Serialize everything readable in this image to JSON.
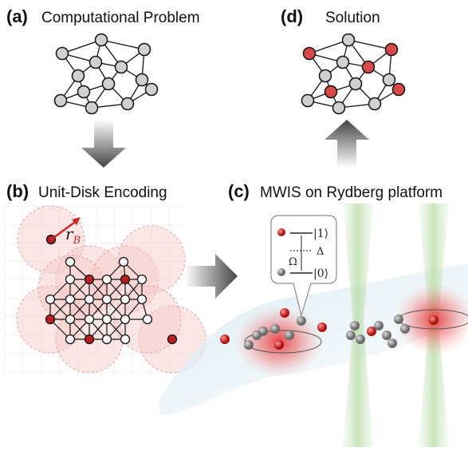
{
  "panels": [
    {
      "label": "(a)",
      "title": "Computational Problem"
    },
    {
      "label": "(d)",
      "title": "Solution"
    },
    {
      "label": "(b)",
      "title": "Unit-Disk Encoding"
    },
    {
      "label": "(c)",
      "title": "MWIS on Rydberg platform"
    }
  ],
  "radius_label": "r",
  "radius_subscript": "B",
  "levels": {
    "upper": "|1⟩",
    "detuning": "Δ",
    "rabi": "Ω",
    "lower": "|0⟩"
  }
}
